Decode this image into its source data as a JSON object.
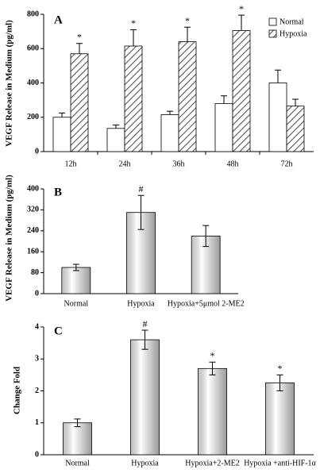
{
  "chart_data": [
    {
      "type": "bar",
      "panel_label": "A",
      "y_label": "VEGF Release in Medium (pg/ml)",
      "categories": [
        "12h",
        "24h",
        "36h",
        "48h",
        "72h"
      ],
      "series": [
        {
          "name": "Normal",
          "color": "#ffffff",
          "fill_style": "plain",
          "values": [
            200,
            135,
            215,
            280,
            400
          ],
          "errors": [
            25,
            20,
            20,
            45,
            75
          ],
          "markers": [
            null,
            null,
            null,
            null,
            null
          ]
        },
        {
          "name": "Hypoxia",
          "color": "#555555",
          "fill_style": "hatched",
          "values": [
            570,
            615,
            640,
            705,
            265
          ],
          "errors": [
            60,
            95,
            85,
            90,
            40
          ],
          "markers": [
            "*",
            "*",
            "*",
            "*",
            null
          ]
        }
      ],
      "error_bars": "upper",
      "ylim": [
        0,
        800
      ],
      "yticks": [
        0,
        200,
        400,
        600,
        800
      ],
      "legend": "top-right"
    },
    {
      "type": "bar",
      "panel_label": "B",
      "y_label": "VEGF Release  in Medium (pg/ml)",
      "categories": [
        "Normal",
        "Hypoxia",
        "Hypoxia+5μmol 2-ME2"
      ],
      "values": [
        100,
        310,
        220
      ],
      "errors": [
        12,
        65,
        40
      ],
      "markers": [
        null,
        "#",
        null
      ],
      "color": "#9a9a9a",
      "fill_style": "gradient",
      "error_bars": "both",
      "ylim": [
        0,
        400
      ],
      "yticks": [
        0,
        80,
        160,
        240,
        320,
        400
      ]
    },
    {
      "type": "bar",
      "panel_label": "C",
      "y_label": "Change Fold",
      "categories": [
        "Normal",
        "Hypoxia",
        "Hypoxia+2-ME2",
        "Hypoxia +anti-HIF-1α"
      ],
      "values": [
        1,
        3.6,
        2.7,
        2.25
      ],
      "errors": [
        0.12,
        0.3,
        0.2,
        0.25
      ],
      "markers": [
        null,
        "#",
        "*",
        "*"
      ],
      "color": "#9a9a9a",
      "fill_style": "gradient",
      "error_bars": "both",
      "ylim": [
        0,
        4
      ],
      "yticks": [
        0,
        1,
        2,
        3,
        4
      ]
    }
  ]
}
